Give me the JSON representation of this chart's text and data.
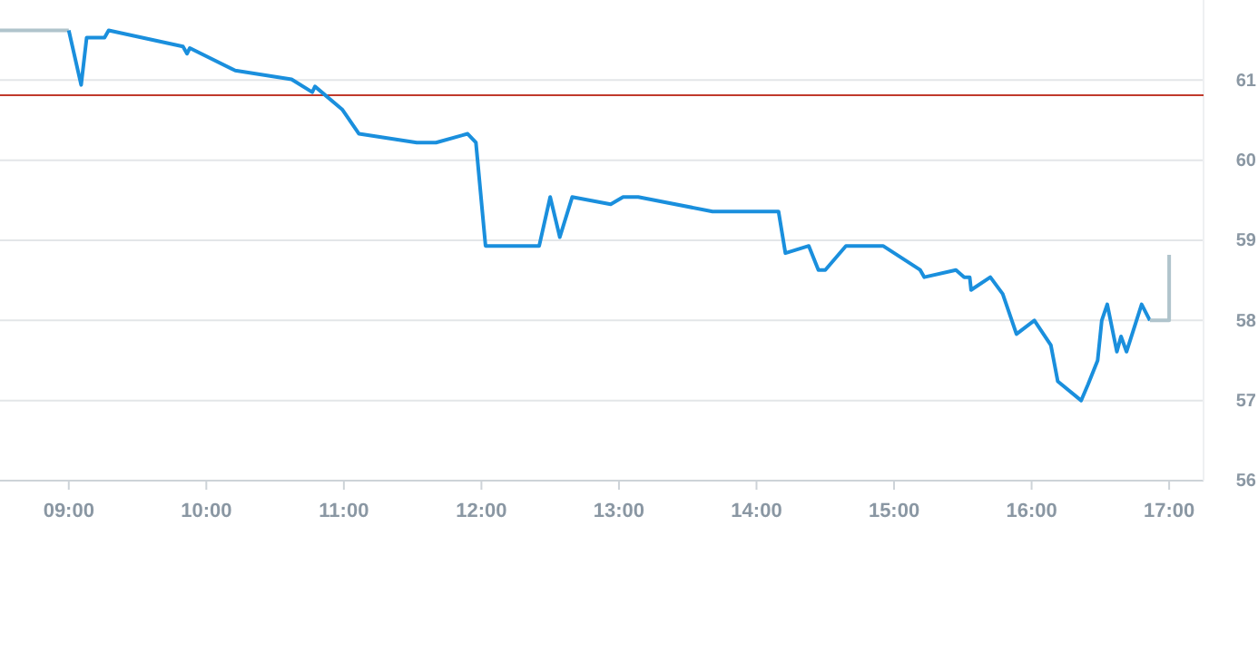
{
  "chart_data": {
    "type": "line",
    "xlim": [
      8.5,
      17.25
    ],
    "ylim": [
      56,
      62
    ],
    "xticks": [
      {
        "value": 9,
        "label": "09:00"
      },
      {
        "value": 10,
        "label": "10:00"
      },
      {
        "value": 11,
        "label": "11:00"
      },
      {
        "value": 12,
        "label": "12:00"
      },
      {
        "value": 13,
        "label": "13:00"
      },
      {
        "value": 14,
        "label": "14:00"
      },
      {
        "value": 15,
        "label": "15:00"
      },
      {
        "value": 16,
        "label": "16:00"
      },
      {
        "value": 17,
        "label": "17:00"
      }
    ],
    "yticks": [
      56,
      57,
      58,
      59,
      60,
      61
    ],
    "grid": "y",
    "marker": "none",
    "line_style": "solid",
    "ref_lines": [
      {
        "axis": "y",
        "value": 60.81,
        "color": "#c0392b"
      }
    ],
    "series": [
      {
        "color": "#b0c4cc",
        "x": [
          8.5,
          9.0
        ],
        "values": [
          61.62,
          61.62
        ]
      },
      {
        "color": "#1a8fdd",
        "x": [
          9.0,
          9.09,
          9.13,
          9.26,
          9.29,
          9.83,
          9.86,
          9.88,
          10.21,
          10.62,
          10.77,
          10.79,
          10.99,
          11.11,
          11.53,
          11.67,
          11.9,
          11.96,
          12.03,
          12.42,
          12.5,
          12.57,
          12.66,
          12.94,
          13.03,
          13.14,
          13.68,
          14.16,
          14.21,
          14.38,
          14.45,
          14.5,
          14.65,
          14.92,
          15.19,
          15.22,
          15.45,
          15.51,
          15.55,
          15.56,
          15.7,
          15.79,
          15.89,
          16.02,
          16.14,
          16.19,
          16.36,
          16.41,
          16.48,
          16.51,
          16.55,
          16.62,
          16.65,
          16.69,
          16.8,
          16.86
        ],
        "values": [
          61.62,
          60.94,
          61.53,
          61.53,
          61.62,
          61.42,
          61.33,
          61.4,
          61.12,
          61.01,
          60.85,
          60.92,
          60.63,
          60.33,
          60.22,
          60.22,
          60.33,
          60.22,
          58.93,
          58.93,
          59.54,
          59.04,
          59.54,
          59.45,
          59.54,
          59.54,
          59.36,
          59.36,
          58.84,
          58.93,
          58.63,
          58.63,
          58.93,
          58.93,
          58.63,
          58.54,
          58.63,
          58.54,
          58.54,
          58.38,
          58.54,
          58.33,
          57.83,
          58.0,
          57.69,
          57.24,
          57.0,
          57.2,
          57.5,
          58.0,
          58.2,
          57.61,
          57.8,
          57.61,
          58.2,
          58.0
        ]
      },
      {
        "color": "#b0c4cc",
        "x": [
          16.86,
          17.0,
          17.0
        ],
        "values": [
          58.0,
          58.0,
          58.82
        ]
      }
    ]
  }
}
